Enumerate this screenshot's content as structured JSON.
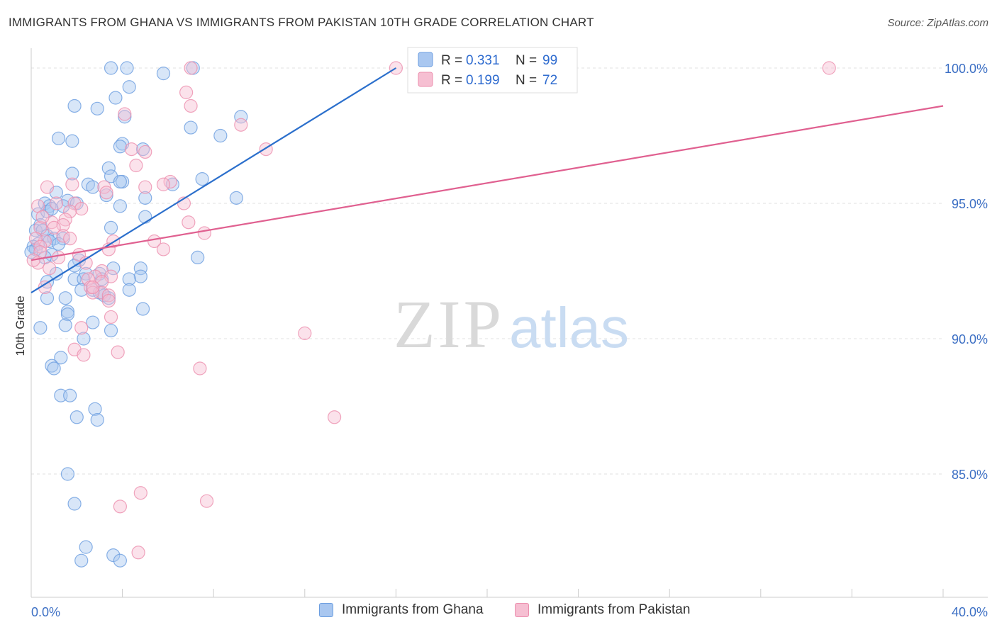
{
  "title": "IMMIGRANTS FROM GHANA VS IMMIGRANTS FROM PAKISTAN 10TH GRADE CORRELATION CHART",
  "source": "Source: ZipAtlas.com",
  "watermark": {
    "zip": "ZIP",
    "atlas": "atlas"
  },
  "chart_data": {
    "type": "scatter",
    "title": "IMMIGRANTS FROM GHANA VS IMMIGRANTS FROM PAKISTAN 10TH GRADE CORRELATION CHART",
    "xlabel": "",
    "ylabel": "10th Grade",
    "xlim": [
      0,
      40
    ],
    "ylim": [
      80.5,
      100.6
    ],
    "x_tick_labels": [
      {
        "value": 0,
        "label": "0.0%"
      },
      {
        "value": 40,
        "label": "40.0%"
      }
    ],
    "y_tick_labels": [
      {
        "value": 100,
        "label": "100.0%"
      },
      {
        "value": 95,
        "label": "95.0%"
      },
      {
        "value": 90,
        "label": "90.0%"
      },
      {
        "value": 85,
        "label": "85.0%"
      }
    ],
    "legend": [
      {
        "r_label": "R =",
        "r_value": "0.331",
        "n_label": "N =",
        "n_value": "99",
        "name": "Immigrants from Ghana"
      },
      {
        "r_label": "R =",
        "r_value": "0.199",
        "n_label": "N =",
        "n_value": "72",
        "name": "Immigrants from Pakistan"
      }
    ],
    "series": [
      {
        "name": "Immigrants from Ghana",
        "color": "#6c9ee0",
        "fill": "#a9c7f0",
        "trend": {
          "x": [
            0,
            16
          ],
          "y": [
            91.7,
            100.0
          ],
          "color": "#2b6fcc"
        },
        "points": [
          [
            3.5,
            100.0
          ],
          [
            4.2,
            100.0
          ],
          [
            7.1,
            100.0
          ],
          [
            5.8,
            99.8
          ],
          [
            4.3,
            99.3
          ],
          [
            3.7,
            98.9
          ],
          [
            1.9,
            98.6
          ],
          [
            2.9,
            98.5
          ],
          [
            4.1,
            98.2
          ],
          [
            9.2,
            98.2
          ],
          [
            7.0,
            97.8
          ],
          [
            8.3,
            97.5
          ],
          [
            1.2,
            97.4
          ],
          [
            1.8,
            97.3
          ],
          [
            4.0,
            97.2
          ],
          [
            3.9,
            97.1
          ],
          [
            4.9,
            97.0
          ],
          [
            3.4,
            96.3
          ],
          [
            1.8,
            96.1
          ],
          [
            3.5,
            96.0
          ],
          [
            7.5,
            95.9
          ],
          [
            4.0,
            95.8
          ],
          [
            3.9,
            95.8
          ],
          [
            2.5,
            95.7
          ],
          [
            6.2,
            95.7
          ],
          [
            2.7,
            95.6
          ],
          [
            1.1,
            95.4
          ],
          [
            3.3,
            95.3
          ],
          [
            5.0,
            95.2
          ],
          [
            9.0,
            95.2
          ],
          [
            1.6,
            95.1
          ],
          [
            2.0,
            95.0
          ],
          [
            0.6,
            95.0
          ],
          [
            0.8,
            94.9
          ],
          [
            1.4,
            94.9
          ],
          [
            3.9,
            94.9
          ],
          [
            0.3,
            94.6
          ],
          [
            0.7,
            94.7
          ],
          [
            0.9,
            94.8
          ],
          [
            5.0,
            94.5
          ],
          [
            0.4,
            94.2
          ],
          [
            0.2,
            94.0
          ],
          [
            0.5,
            94.0
          ],
          [
            0.7,
            93.8
          ],
          [
            1.0,
            93.7
          ],
          [
            3.5,
            94.1
          ],
          [
            1.4,
            93.7
          ],
          [
            0.8,
            93.6
          ],
          [
            0.3,
            93.5
          ],
          [
            0.1,
            93.4
          ],
          [
            1.2,
            93.5
          ],
          [
            0.2,
            93.3
          ],
          [
            0.9,
            93.1
          ],
          [
            0.6,
            93.0
          ],
          [
            7.3,
            93.0
          ],
          [
            2.1,
            92.9
          ],
          [
            1.9,
            92.7
          ],
          [
            3.6,
            92.6
          ],
          [
            4.8,
            92.6
          ],
          [
            1.1,
            92.4
          ],
          [
            2.4,
            92.4
          ],
          [
            3.0,
            92.4
          ],
          [
            4.8,
            92.3
          ],
          [
            4.3,
            92.2
          ],
          [
            1.9,
            92.2
          ],
          [
            2.3,
            92.2
          ],
          [
            0.7,
            92.1
          ],
          [
            3.1,
            92.2
          ],
          [
            4.3,
            91.8
          ],
          [
            2.2,
            91.8
          ],
          [
            2.7,
            91.8
          ],
          [
            3.0,
            91.7
          ],
          [
            3.2,
            91.6
          ],
          [
            0.7,
            91.5
          ],
          [
            1.5,
            91.5
          ],
          [
            3.4,
            91.5
          ],
          [
            4.9,
            91.1
          ],
          [
            1.6,
            91.0
          ],
          [
            1.6,
            90.9
          ],
          [
            2.7,
            90.6
          ],
          [
            1.5,
            90.5
          ],
          [
            0.4,
            90.4
          ],
          [
            3.5,
            90.3
          ],
          [
            2.3,
            90.0
          ],
          [
            1.3,
            89.3
          ],
          [
            0.9,
            89.0
          ],
          [
            1.0,
            88.9
          ],
          [
            1.3,
            87.9
          ],
          [
            1.7,
            87.9
          ],
          [
            2.8,
            87.4
          ],
          [
            2.0,
            87.1
          ],
          [
            2.9,
            87.0
          ],
          [
            1.6,
            85.0
          ],
          [
            1.9,
            83.9
          ],
          [
            2.4,
            82.3
          ],
          [
            3.6,
            82.0
          ],
          [
            2.2,
            81.8
          ],
          [
            3.9,
            81.8
          ],
          [
            0.0,
            93.2
          ]
        ]
      },
      {
        "name": "Immigrants from Pakistan",
        "color": "#ec8fae",
        "fill": "#f6bfd2",
        "trend": {
          "x": [
            0,
            40
          ],
          "y": [
            92.9,
            98.6
          ],
          "color": "#e06090"
        },
        "points": [
          [
            16.0,
            100.0
          ],
          [
            35.0,
            100.0
          ],
          [
            7.0,
            100.0
          ],
          [
            6.8,
            99.1
          ],
          [
            7.0,
            98.6
          ],
          [
            4.1,
            98.3
          ],
          [
            9.2,
            97.9
          ],
          [
            10.3,
            97.0
          ],
          [
            4.4,
            97.0
          ],
          [
            5.0,
            96.9
          ],
          [
            4.6,
            96.4
          ],
          [
            6.1,
            95.8
          ],
          [
            1.8,
            95.7
          ],
          [
            0.7,
            95.6
          ],
          [
            3.2,
            95.6
          ],
          [
            3.3,
            95.4
          ],
          [
            5.0,
            95.6
          ],
          [
            6.7,
            95.0
          ],
          [
            1.9,
            95.0
          ],
          [
            2.2,
            94.8
          ],
          [
            0.3,
            94.9
          ],
          [
            1.7,
            94.7
          ],
          [
            1.5,
            94.4
          ],
          [
            0.9,
            94.3
          ],
          [
            1.4,
            94.2
          ],
          [
            1.0,
            94.1
          ],
          [
            0.4,
            94.1
          ],
          [
            6.9,
            94.3
          ],
          [
            7.6,
            93.9
          ],
          [
            1.4,
            93.8
          ],
          [
            1.7,
            93.7
          ],
          [
            0.6,
            93.6
          ],
          [
            0.2,
            93.7
          ],
          [
            0.4,
            93.4
          ],
          [
            3.6,
            93.6
          ],
          [
            5.4,
            93.6
          ],
          [
            3.4,
            93.3
          ],
          [
            5.8,
            93.3
          ],
          [
            0.4,
            93.2
          ],
          [
            2.1,
            93.1
          ],
          [
            1.2,
            93.0
          ],
          [
            0.3,
            92.8
          ],
          [
            2.4,
            92.8
          ],
          [
            0.8,
            92.6
          ],
          [
            3.1,
            92.5
          ],
          [
            3.5,
            92.3
          ],
          [
            2.8,
            92.3
          ],
          [
            3.1,
            92.1
          ],
          [
            2.5,
            92.2
          ],
          [
            2.6,
            91.9
          ],
          [
            0.6,
            91.9
          ],
          [
            3.1,
            91.7
          ],
          [
            3.4,
            91.6
          ],
          [
            3.4,
            91.4
          ],
          [
            2.7,
            91.7
          ],
          [
            3.5,
            90.8
          ],
          [
            2.2,
            90.4
          ],
          [
            12.0,
            90.2
          ],
          [
            1.9,
            89.6
          ],
          [
            3.8,
            89.5
          ],
          [
            2.3,
            89.4
          ],
          [
            7.4,
            88.9
          ],
          [
            13.3,
            87.1
          ],
          [
            4.8,
            84.3
          ],
          [
            7.7,
            84.0
          ],
          [
            3.9,
            83.8
          ],
          [
            4.7,
            82.1
          ],
          [
            0.5,
            94.5
          ],
          [
            0.1,
            92.9
          ],
          [
            1.1,
            95.0
          ],
          [
            2.7,
            91.9
          ],
          [
            5.8,
            95.7
          ]
        ]
      }
    ]
  }
}
